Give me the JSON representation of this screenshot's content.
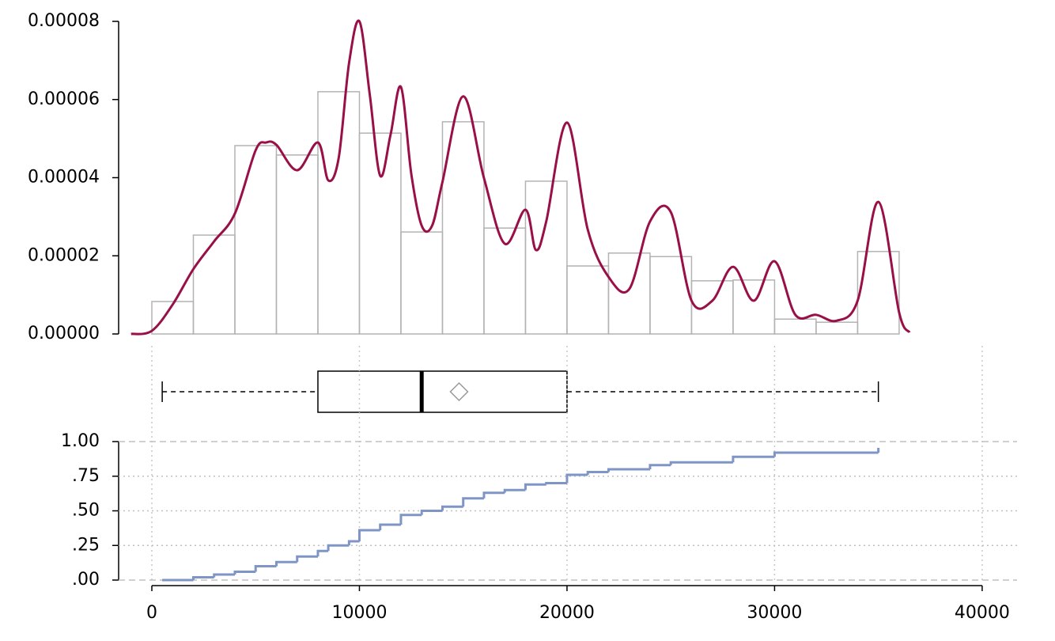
{
  "chart_data": [
    {
      "type": "histogram",
      "bar_color": "#b3b3b3",
      "bins": [
        0,
        2000,
        4000,
        6000,
        8000,
        10000,
        12000,
        14000,
        16000,
        18000,
        20000,
        22000,
        24000,
        26000,
        28000,
        30000,
        32000,
        34000,
        36000
      ],
      "values": [
        8.3e-06,
        2.53e-05,
        4.82e-05,
        4.58e-05,
        6.2e-05,
        5.14e-05,
        2.61e-05,
        5.43e-05,
        2.71e-05,
        3.91e-05,
        1.74e-05,
        2.07e-05,
        1.98e-05,
        1.36e-05,
        1.38e-05,
        3.8e-06,
        3e-06,
        2.11e-05
      ],
      "density": {
        "color": "#990f47",
        "x": [
          -1000,
          0,
          1000,
          2000,
          3000,
          4000,
          5000,
          5500,
          6000,
          7000,
          8000,
          8500,
          9000,
          9500,
          10000,
          10500,
          11000,
          11500,
          12000,
          12500,
          13000,
          13500,
          14000,
          15000,
          16000,
          17000,
          18000,
          18500,
          19000,
          20000,
          21000,
          22000,
          23000,
          24000,
          25000,
          26000,
          27000,
          28000,
          29000,
          30000,
          31000,
          32000,
          33000,
          34000,
          35000,
          36000,
          36500
        ],
        "values": [
          0,
          8e-07,
          7.5e-06,
          1.66e-05,
          2.37e-05,
          3.08e-05,
          4.7e-05,
          4.9e-05,
          4.84e-05,
          4.19e-05,
          4.9e-05,
          3.93e-05,
          4.5e-05,
          6.93e-05,
          8e-05,
          6.12e-05,
          4.05e-05,
          5.1e-05,
          6.32e-05,
          4.09e-05,
          2.77e-05,
          2.77e-05,
          3.89e-05,
          6.08e-05,
          3.99e-05,
          2.31e-05,
          3.18e-05,
          2.15e-05,
          2.88e-05,
          5.41e-05,
          2.67e-05,
          1.46e-05,
          1.15e-05,
          2.88e-05,
          3.12e-05,
          8.5e-06,
          8.5e-06,
          1.72e-05,
          8.5e-06,
          1.86e-05,
          4.9e-06,
          4.9e-06,
          3.4e-06,
          8.5e-06,
          3.38e-05,
          5.5e-06,
          4e-07
        ]
      },
      "xlim": [
        -1600,
        41680
      ],
      "ylim": [
        0,
        8e-05
      ],
      "yticks": [
        {
          "value": 0,
          "label": "0.00000"
        },
        {
          "value": 2e-05,
          "label": "0.00002"
        },
        {
          "value": 4e-05,
          "label": "0.00004"
        },
        {
          "value": 6e-05,
          "label": "0.00006"
        },
        {
          "value": 8e-05,
          "label": "0.00008"
        }
      ]
    },
    {
      "type": "box",
      "min": 500,
      "q1": 8000,
      "median": 13000,
      "q3": 20000,
      "max": 35000,
      "mean": 14800,
      "xlim": [
        -1600,
        41680
      ]
    },
    {
      "type": "ecdf",
      "color": "#7f95c6",
      "x": [
        500,
        2000,
        3000,
        4000,
        5000,
        6000,
        7000,
        8000,
        8500,
        9500,
        10000,
        11000,
        12000,
        13000,
        14000,
        15000,
        16000,
        17000,
        18000,
        19000,
        20000,
        21000,
        22000,
        24000,
        25000,
        28000,
        30000,
        35000
      ],
      "values": [
        0,
        0.02,
        0.04,
        0.06,
        0.1,
        0.13,
        0.17,
        0.21,
        0.25,
        0.28,
        0.36,
        0.4,
        0.47,
        0.5,
        0.53,
        0.59,
        0.63,
        0.65,
        0.69,
        0.7,
        0.76,
        0.78,
        0.8,
        0.83,
        0.85,
        0.89,
        0.92,
        0.955
      ],
      "xlim": [
        -1600,
        41680
      ],
      "ylim": [
        0,
        1
      ],
      "xticks": [
        0,
        10000,
        20000,
        30000,
        40000
      ],
      "yticks": [
        {
          "value": 0,
          "label": ".00"
        },
        {
          "value": 0.25,
          "label": ".25"
        },
        {
          "value": 0.5,
          "label": ".50"
        },
        {
          "value": 0.75,
          "label": ".75"
        },
        {
          "value": 1,
          "label": "1.00"
        }
      ]
    }
  ]
}
